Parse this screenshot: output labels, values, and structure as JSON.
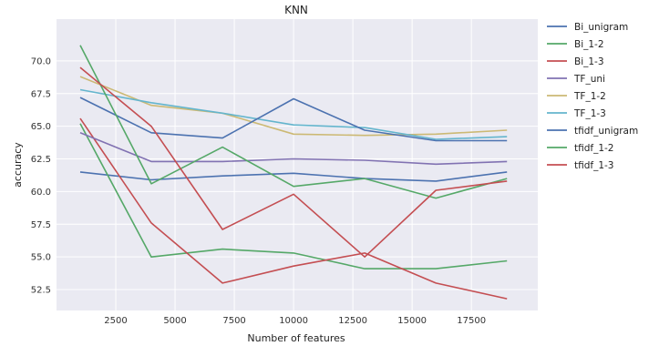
{
  "chart_data": {
    "type": "line",
    "title": "KNN",
    "xlabel": "Number of features",
    "ylabel": "accuracy",
    "xlim": [
      0,
      20300
    ],
    "ylim": [
      50.9,
      73.2
    ],
    "xticks": [
      2500,
      5000,
      7500,
      10000,
      12500,
      15000,
      17500
    ],
    "yticks": [
      52.5,
      55.0,
      57.5,
      60.0,
      62.5,
      65.0,
      67.5,
      70.0
    ],
    "xtick_labels": [
      "2500",
      "5000",
      "7500",
      "10000",
      "12500",
      "15000",
      "17500"
    ],
    "ytick_labels": [
      "52.5",
      "55.0",
      "57.5",
      "60.0",
      "62.5",
      "65.0",
      "67.5",
      "70.0"
    ],
    "x": [
      1000,
      4000,
      7000,
      10000,
      13000,
      16000,
      19000
    ],
    "grid": true,
    "legend_position": "outside-right",
    "series": [
      {
        "name": "Bi_unigram",
        "color": "#4c72b0",
        "values": [
          61.5,
          60.9,
          61.2,
          61.4,
          61.0,
          60.8,
          61.5
        ]
      },
      {
        "name": "Bi_1-2",
        "color": "#55a868",
        "values": [
          65.2,
          55.0,
          55.6,
          55.3,
          54.1,
          54.1,
          54.7
        ]
      },
      {
        "name": "Bi_1-3",
        "color": "#c44e52",
        "values": [
          65.6,
          57.6,
          53.0,
          54.3,
          55.3,
          53.0,
          51.8
        ]
      },
      {
        "name": "TF_uni",
        "color": "#8172b2",
        "values": [
          64.5,
          62.3,
          62.3,
          62.5,
          62.4,
          62.1,
          62.3
        ]
      },
      {
        "name": "TF_1-2",
        "color": "#ccb974",
        "values": [
          68.8,
          66.6,
          66.0,
          64.4,
          64.3,
          64.4,
          64.7
        ]
      },
      {
        "name": "TF_1-3",
        "color": "#64b5cd",
        "values": [
          67.8,
          66.8,
          66.0,
          65.1,
          64.9,
          64.0,
          64.2
        ]
      },
      {
        "name": "tfidf_unigram",
        "color": "#4c72b0",
        "values": [
          67.2,
          64.5,
          64.1,
          67.1,
          64.7,
          63.9,
          63.9
        ]
      },
      {
        "name": "tfidf_1-2",
        "color": "#55a868",
        "values": [
          71.2,
          60.6,
          63.4,
          60.4,
          61.0,
          59.5,
          61.0
        ]
      },
      {
        "name": "tfidf_1-3",
        "color": "#c44e52",
        "values": [
          69.5,
          65.0,
          57.1,
          59.8,
          55.0,
          60.1,
          60.8
        ]
      }
    ]
  }
}
